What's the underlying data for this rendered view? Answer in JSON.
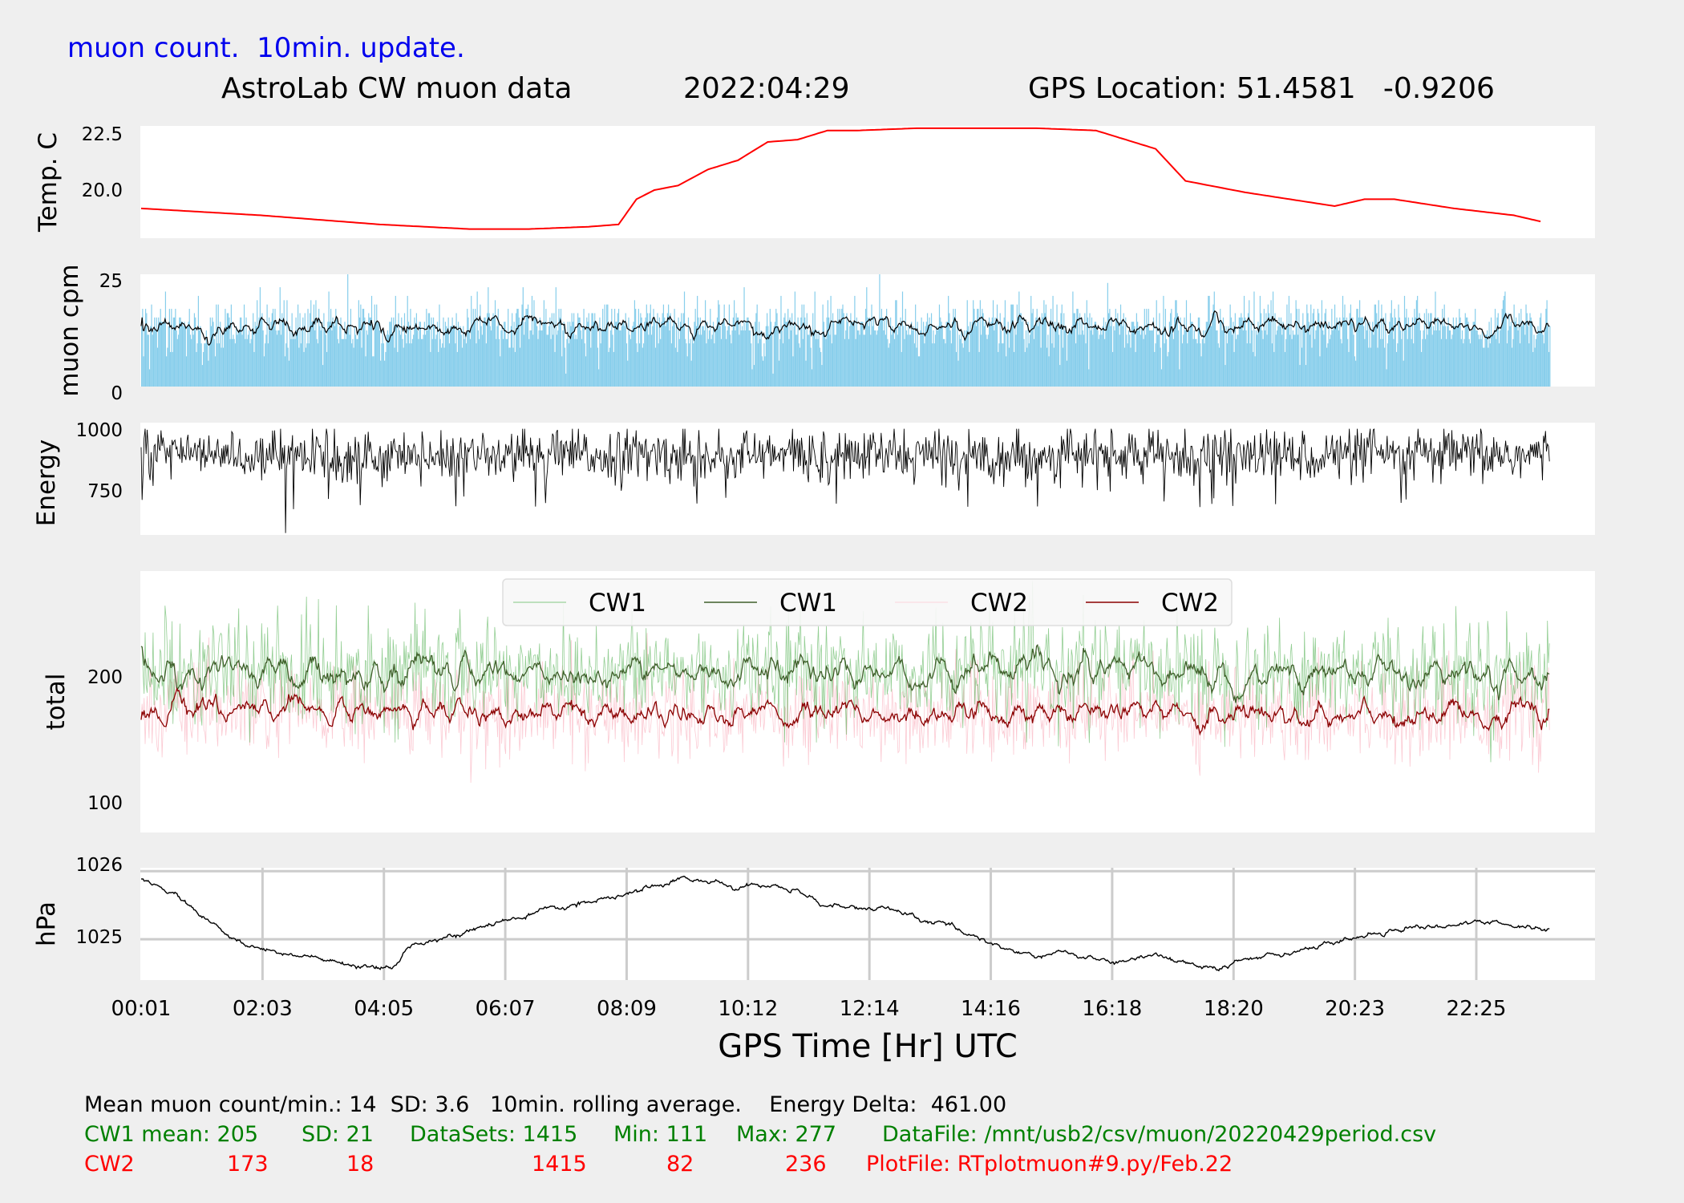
{
  "header": {
    "note": "muon count.  10min. update.",
    "title": "AstroLab CW muon data",
    "date": "2022:04:29",
    "gps": "GPS Location: 51.4581   -0.9206"
  },
  "colors": {
    "background": "#efefef",
    "note": "#0000ee",
    "temp": "#ff0000",
    "muon_bars": "#87ceeb",
    "cw1_raw": "#59b359",
    "cw1_avg": "#3f5f2a",
    "cw2_raw": "#f9b8c4",
    "cw2_avg": "#8b0000",
    "green_text": "#008000",
    "red_text": "#ff0000"
  },
  "footer": {
    "line1": "Mean muon count/min.: 14  SD: 3.6   10min. rolling average.    Energy Delta:  461.00",
    "cw1": {
      "label": "CW1 mean: 205",
      "sd": "SD: 21",
      "datasets": "DataSets: 1415",
      "min": "Min: 111",
      "max": "Max: 277",
      "file": "DataFile: /mnt/usb2/csv/muon/20220429period.csv"
    },
    "cw2": {
      "label": "CW2",
      "mean": "173",
      "sd": "18",
      "datasets": "1415",
      "min": "82",
      "max": "236",
      "file": "PlotFile: RTplotmuon#9.py/Feb.22"
    }
  },
  "chart_data": [
    {
      "type": "line",
      "ylabel": "Temp. C",
      "yticks": [
        "20.0",
        "22.5"
      ],
      "ylim": [
        17.9,
        22.8
      ],
      "x_hours": [
        0.0,
        2.0,
        4.0,
        5.5,
        6.5,
        7.5,
        8.0,
        8.3,
        8.6,
        9.0,
        9.5,
        10.0,
        10.5,
        11.0,
        11.5,
        12.0,
        13.0,
        14.0,
        15.0,
        16.0,
        17.0,
        17.5,
        18.5,
        19.5,
        20.0,
        20.5,
        21.0,
        22.0,
        23.0,
        23.5
      ],
      "values": [
        19.2,
        18.9,
        18.5,
        18.3,
        18.3,
        18.4,
        18.5,
        19.6,
        20.0,
        20.2,
        20.9,
        21.3,
        22.1,
        22.2,
        22.6,
        22.6,
        22.7,
        22.7,
        22.7,
        22.6,
        21.8,
        20.4,
        19.9,
        19.5,
        19.3,
        19.6,
        19.6,
        19.2,
        18.9,
        18.6
      ]
    },
    {
      "type": "bar",
      "ylabel": "muon cpm",
      "yticks": [
        "0",
        "25"
      ],
      "ylim": [
        0,
        26
      ],
      "series": [
        {
          "name": "muon count per minute",
          "count": 1415,
          "mean": 14,
          "sd": 3.6,
          "min": 3,
          "max": 26
        },
        {
          "name": "10min. rolling average",
          "mean": 14
        }
      ]
    },
    {
      "type": "line",
      "ylabel": "Energy",
      "yticks": [
        "750",
        "1000"
      ],
      "ylim": [
        580,
        1040
      ],
      "series": [
        {
          "name": "Energy",
          "typical_range": [
            800,
            1000
          ],
          "min": 588,
          "delta": 461.0
        }
      ]
    },
    {
      "type": "line",
      "ylabel": "total",
      "yticks": [
        "100",
        "200"
      ],
      "ylim": [
        78,
        285
      ],
      "legend": [
        "CW1",
        "CW1",
        "CW2",
        "CW2"
      ],
      "legend_position": "top-center",
      "series": [
        {
          "name": "CW1",
          "mean": 205,
          "sd": 21,
          "datasets": 1415,
          "min": 111,
          "max": 277
        },
        {
          "name": "CW1"
        },
        {
          "name": "CW2",
          "mean": 173,
          "sd": 18,
          "datasets": 1415,
          "min": 82,
          "max": 236
        },
        {
          "name": "CW2"
        }
      ]
    },
    {
      "type": "line",
      "ylabel": "hPa",
      "yticks": [
        "1025",
        "1026"
      ],
      "ylim": [
        1024.4,
        1026.05
      ],
      "grid": true,
      "x_hours": [
        0.0,
        0.5,
        1.0,
        1.5,
        2.0,
        2.5,
        3.0,
        3.5,
        4.0,
        4.2,
        4.5,
        5.0,
        5.5,
        6.0,
        6.5,
        7.0,
        7.5,
        8.0,
        8.5,
        9.0,
        9.5,
        10.0,
        10.5,
        11.0,
        11.5,
        12.0,
        12.5,
        13.0,
        13.5,
        14.0,
        14.5,
        15.0,
        15.5,
        16.0,
        16.5,
        17.0,
        17.5,
        18.0,
        18.5,
        19.0,
        19.5,
        20.0,
        20.5,
        21.0,
        21.5,
        22.0,
        22.5,
        23.0,
        23.5
      ],
      "values": [
        1025.85,
        1025.7,
        1025.35,
        1025.0,
        1024.85,
        1024.8,
        1024.7,
        1024.6,
        1024.55,
        1024.55,
        1024.9,
        1025.05,
        1025.1,
        1025.25,
        1025.35,
        1025.45,
        1025.55,
        1025.6,
        1025.75,
        1025.9,
        1025.85,
        1025.75,
        1025.8,
        1025.7,
        1025.5,
        1025.45,
        1025.45,
        1025.3,
        1025.2,
        1025.05,
        1024.85,
        1024.75,
        1024.8,
        1024.7,
        1024.65,
        1024.8,
        1024.65,
        1024.55,
        1024.7,
        1024.8,
        1024.85,
        1024.95,
        1025.05,
        1025.15,
        1025.2,
        1025.2,
        1025.25,
        1025.2,
        1025.15
      ]
    }
  ],
  "xaxis": {
    "label": "GPS Time  [Hr] UTC",
    "ticks": [
      "00:01",
      "02:03",
      "04:05",
      "06:07",
      "08:09",
      "10:12",
      "12:14",
      "14:16",
      "16:18",
      "18:20",
      "20:23",
      "22:25"
    ],
    "range_hours": [
      0,
      24
    ]
  }
}
